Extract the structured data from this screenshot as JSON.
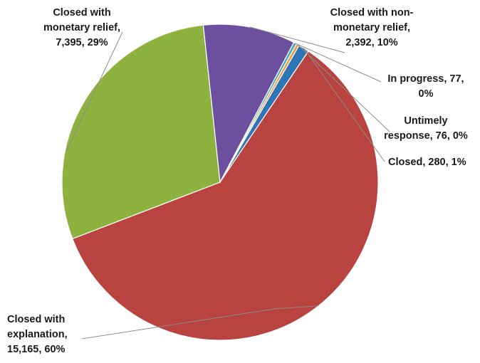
{
  "chart_data": {
    "type": "pie",
    "title": "",
    "slices": [
      {
        "name": "Closed",
        "value": 280,
        "percent": "1%",
        "color": "#2e75b6"
      },
      {
        "name": "Closed with explanation",
        "value": 15165,
        "percent": "60%",
        "color": "#b8433f"
      },
      {
        "name": "Closed with monetary relief",
        "value": 7395,
        "percent": "29%",
        "color": "#8db23f"
      },
      {
        "name": "Closed with non-monetary relief",
        "value": 2392,
        "percent": "10%",
        "color": "#6d4f9f"
      },
      {
        "name": "In progress",
        "value": 77,
        "percent": "0%",
        "color": "#46aac4"
      },
      {
        "name": "Untimely response",
        "value": 76,
        "percent": "0%",
        "color": "#f39a3c"
      }
    ],
    "labels": [
      {
        "lines": [
          "Closed, 280, 1%"
        ]
      },
      {
        "lines": [
          "Closed with",
          "explanation,",
          "15,165, 60%"
        ]
      },
      {
        "lines": [
          "Closed with",
          "monetary relief,",
          "7,395, 29%"
        ]
      },
      {
        "lines": [
          "Closed with non-",
          "monetary relief,",
          "2,392, 10%"
        ]
      },
      {
        "lines": [
          "In progress, 77,",
          "0%"
        ]
      },
      {
        "lines": [
          "Untimely",
          "response, 76, 0%"
        ]
      }
    ]
  }
}
